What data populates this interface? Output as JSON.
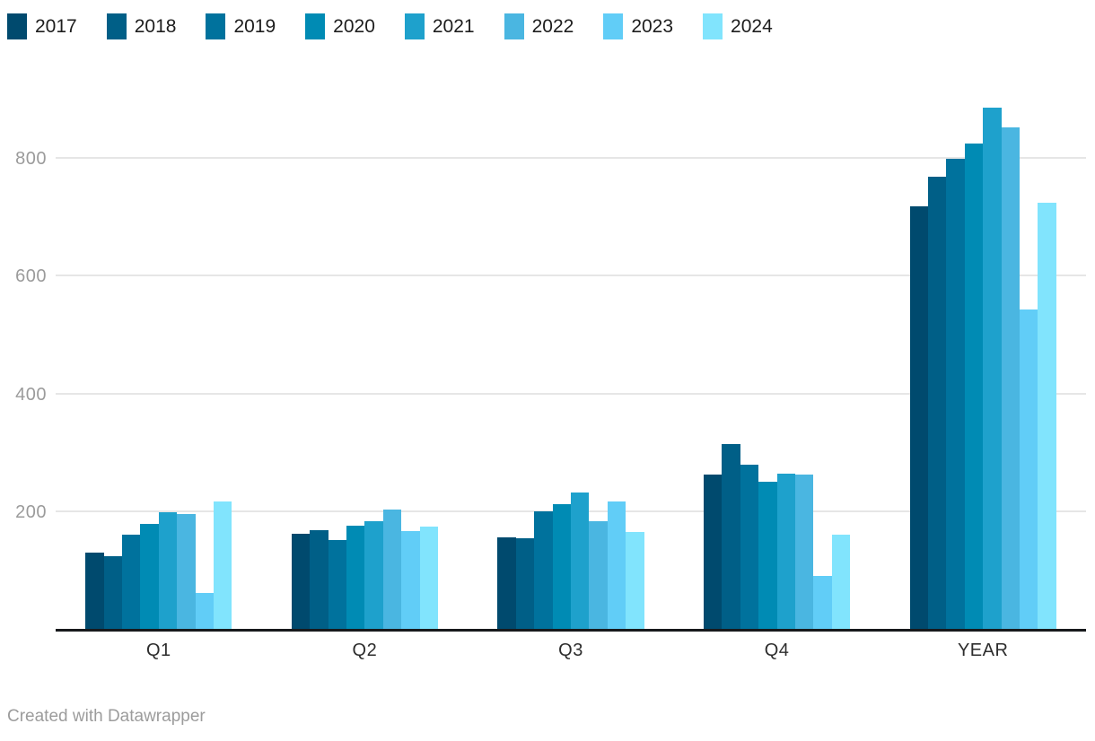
{
  "chart_data": {
    "type": "bar",
    "grouped": true,
    "categories": [
      "Q1",
      "Q2",
      "Q3",
      "Q4",
      "YEAR"
    ],
    "series": [
      {
        "name": "2017",
        "color": "#004a6e",
        "values": [
          132,
          164,
          158,
          265,
          719
        ]
      },
      {
        "name": "2018",
        "color": "#005f87",
        "values": [
          126,
          171,
          156,
          317,
          770
        ]
      },
      {
        "name": "2019",
        "color": "#00729d",
        "values": [
          163,
          153,
          202,
          281,
          799
        ]
      },
      {
        "name": "2020",
        "color": "#008bb4",
        "values": [
          181,
          178,
          215,
          252,
          826
        ]
      },
      {
        "name": "2021",
        "color": "#1ea1cc",
        "values": [
          200,
          186,
          234,
          266,
          886
        ]
      },
      {
        "name": "2022",
        "color": "#4ab6e1",
        "values": [
          197,
          205,
          186,
          265,
          853
        ]
      },
      {
        "name": "2023",
        "color": "#61cdf7",
        "values": [
          64,
          169,
          219,
          93,
          545
        ]
      },
      {
        "name": "2024",
        "color": "#81e4fd",
        "values": [
          219,
          176,
          168,
          162,
          725
        ]
      }
    ],
    "ylim": [
      0,
      900
    ],
    "yticks": [
      200,
      400,
      600,
      800
    ],
    "legend_position": "top",
    "grid": "horizontal",
    "gridline_color": "#e6e6e6",
    "axis_line_color": "#17191c"
  },
  "footer": {
    "credit": "Created with Datawrapper"
  }
}
